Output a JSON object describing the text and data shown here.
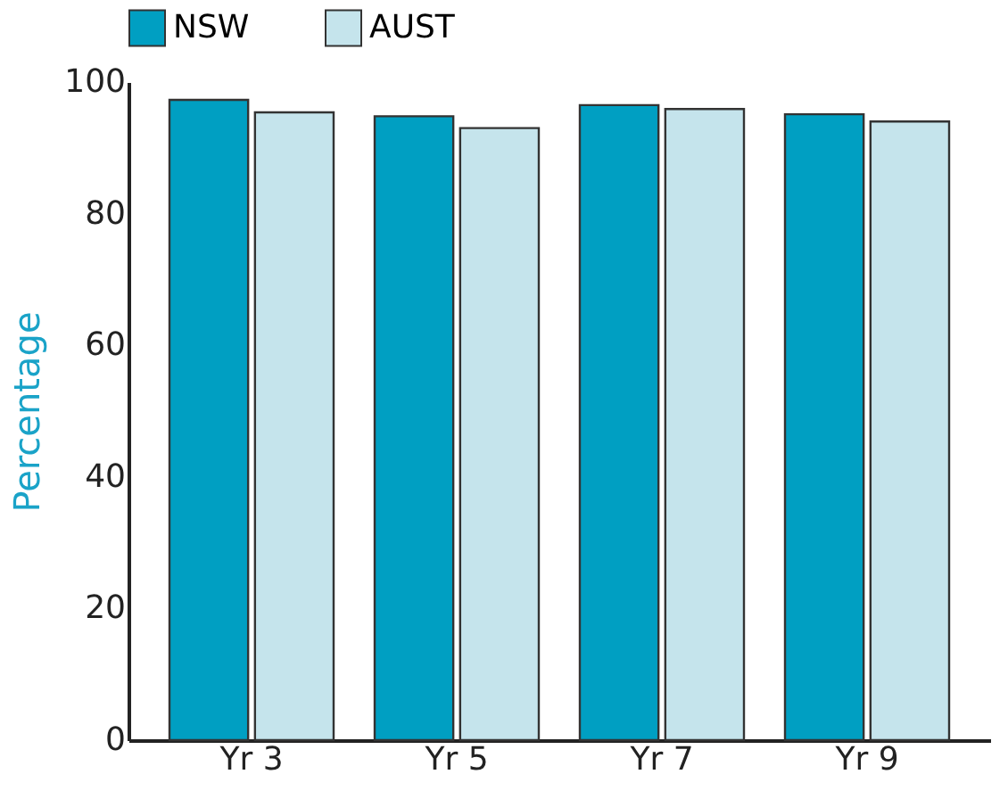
{
  "chart_data": {
    "type": "bar",
    "ylabel": "Percentage",
    "categories": [
      "Yr 3",
      "Yr 5",
      "Yr 7",
      "Yr 9"
    ],
    "series": [
      {
        "name": "NSW",
        "color": "#009fc2",
        "values": [
          97.3,
          94.8,
          96.5,
          95.1
        ]
      },
      {
        "name": "AUST",
        "color": "#c5e4ec",
        "values": [
          95.4,
          93.0,
          95.9,
          94.0
        ]
      }
    ],
    "ylim": [
      0,
      100
    ],
    "yticks": [
      0,
      20,
      40,
      60,
      80,
      100
    ],
    "grid": false,
    "legend": "top"
  }
}
